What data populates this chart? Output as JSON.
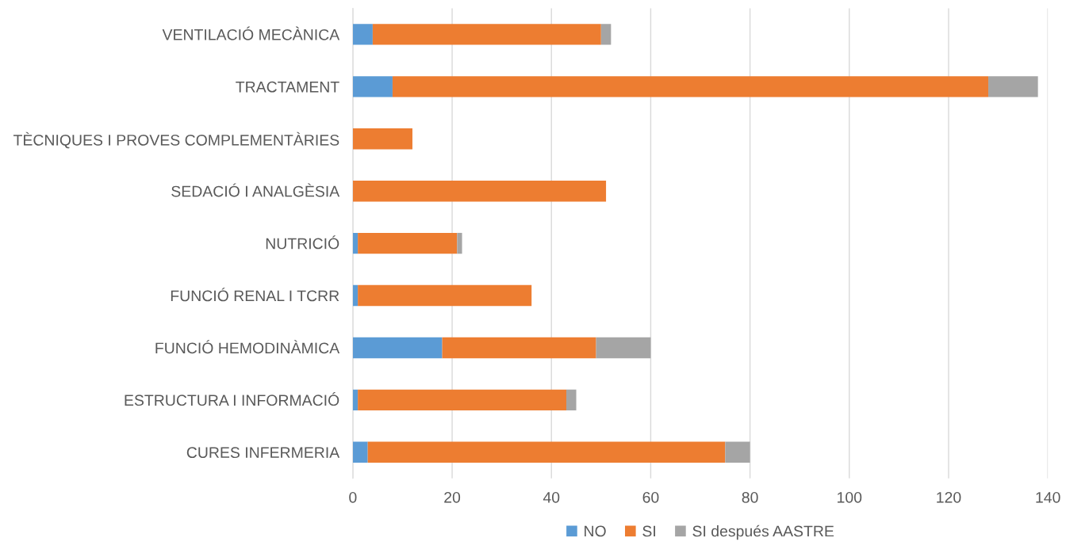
{
  "chart_data": {
    "type": "bar",
    "orientation": "horizontal",
    "stacked": true,
    "categories": [
      "VENTILACIÓ MECÀNICA",
      "TRACTAMENT",
      "TÈCNIQUES I PROVES COMPLEMENTÀRIES",
      "SEDACIÓ I ANALGÈSIA",
      "NUTRICIÓ",
      "FUNCIÓ RENAL I TCRR",
      "FUNCIÓ HEMODINÀMICA",
      "ESTRUCTURA I INFORMACIÓ",
      "CURES INFERMERIA"
    ],
    "series": [
      {
        "name": "NO",
        "color": "#5b9bd5",
        "values": [
          4,
          8,
          0,
          0,
          1,
          1,
          18,
          1,
          3
        ]
      },
      {
        "name": "SI",
        "color": "#ed7d31",
        "values": [
          46,
          120,
          12,
          51,
          20,
          35,
          31,
          42,
          72
        ]
      },
      {
        "name": "SI después AASTRE",
        "color": "#a5a5a5",
        "values": [
          2,
          10,
          0,
          0,
          1,
          0,
          11,
          2,
          5
        ]
      }
    ],
    "xlim": [
      0,
      140
    ],
    "xticks": [
      0,
      20,
      40,
      60,
      80,
      100,
      120,
      140
    ],
    "grid": "x",
    "legend": "bottom"
  }
}
